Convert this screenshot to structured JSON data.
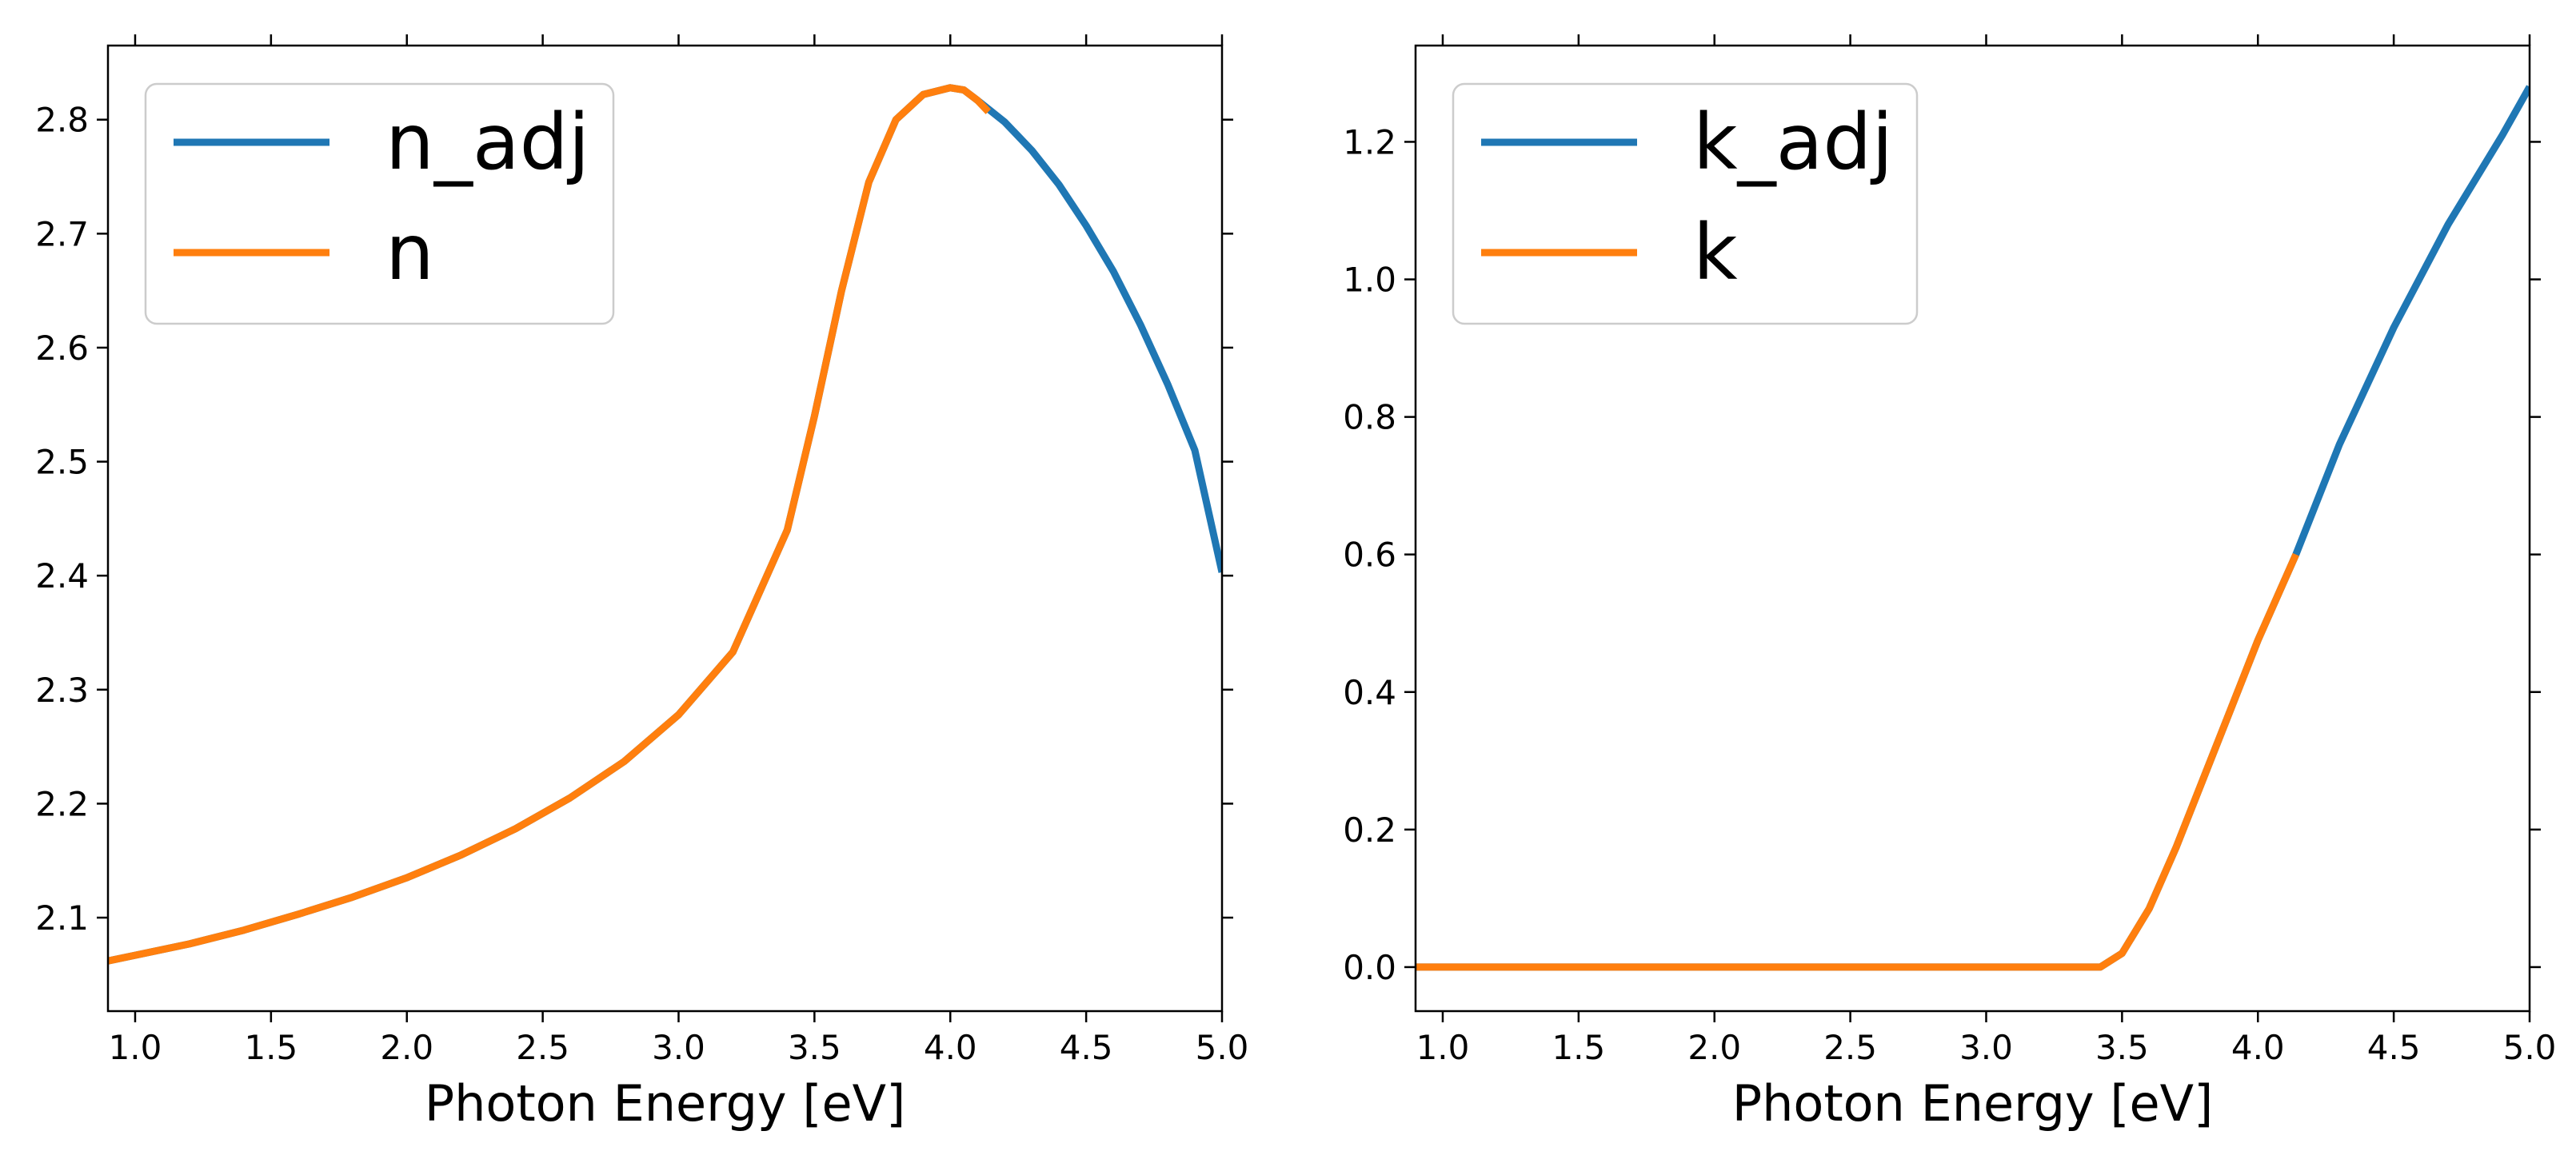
{
  "chart_data": [
    {
      "type": "line",
      "xlabel": "Photon Energy [eV]",
      "ylabel": "",
      "xlim": [
        0.9,
        5.0
      ],
      "ylim": [
        2.018,
        2.865
      ],
      "xticks": [
        "1.0",
        "1.5",
        "2.0",
        "2.5",
        "3.0",
        "3.5",
        "4.0",
        "4.5",
        "5.0"
      ],
      "yticks": [
        "2.1",
        "2.2",
        "2.3",
        "2.4",
        "2.5",
        "2.6",
        "2.7",
        "2.8"
      ],
      "legend": "top-left",
      "grid": false,
      "series": [
        {
          "name": "n_adj",
          "color": "#1f77b4",
          "x": [
            0.9,
            1.0,
            1.2,
            1.4,
            1.6,
            1.8,
            2.0,
            2.2,
            2.4,
            2.6,
            2.8,
            3.0,
            3.2,
            3.4,
            3.5,
            3.6,
            3.7,
            3.8,
            3.9,
            4.0,
            4.05,
            4.1,
            4.2,
            4.3,
            4.4,
            4.5,
            4.6,
            4.7,
            4.8,
            4.9,
            5.0
          ],
          "y": [
            2.062,
            2.067,
            2.077,
            2.089,
            2.103,
            2.118,
            2.135,
            2.155,
            2.178,
            2.205,
            2.237,
            2.278,
            2.333,
            2.44,
            2.54,
            2.65,
            2.745,
            2.8,
            2.822,
            2.828,
            2.826,
            2.817,
            2.798,
            2.773,
            2.743,
            2.707,
            2.667,
            2.62,
            2.568,
            2.51,
            2.403
          ]
        },
        {
          "name": "n",
          "color": "#ff7f0e",
          "x": [
            0.9,
            1.0,
            1.2,
            1.4,
            1.6,
            1.8,
            2.0,
            2.2,
            2.4,
            2.6,
            2.8,
            3.0,
            3.2,
            3.4,
            3.5,
            3.6,
            3.7,
            3.8,
            3.9,
            4.0,
            4.05,
            4.1,
            4.14
          ],
          "y": [
            2.062,
            2.067,
            2.077,
            2.089,
            2.103,
            2.118,
            2.135,
            2.155,
            2.178,
            2.205,
            2.237,
            2.278,
            2.333,
            2.44,
            2.54,
            2.65,
            2.745,
            2.8,
            2.822,
            2.828,
            2.826,
            2.817,
            2.807
          ]
        }
      ]
    },
    {
      "type": "line",
      "xlabel": "Photon Energy [eV]",
      "ylabel": "",
      "xlim": [
        0.9,
        5.0
      ],
      "ylim": [
        -0.064,
        1.34
      ],
      "xticks": [
        "1.0",
        "1.5",
        "2.0",
        "2.5",
        "3.0",
        "3.5",
        "4.0",
        "4.5",
        "5.0"
      ],
      "yticks": [
        "0.0",
        "0.2",
        "0.4",
        "0.6",
        "0.8",
        "1.0",
        "1.2"
      ],
      "legend": "top-left",
      "grid": false,
      "series": [
        {
          "name": "k_adj",
          "color": "#1f77b4",
          "x": [
            0.9,
            1.5,
            2.0,
            2.5,
            3.0,
            3.42,
            3.5,
            3.6,
            3.7,
            3.8,
            3.9,
            4.0,
            4.14,
            4.3,
            4.5,
            4.7,
            4.9,
            5.0
          ],
          "y": [
            0.0,
            0.0,
            0.0,
            0.0,
            0.0,
            0.0,
            0.02,
            0.085,
            0.175,
            0.275,
            0.375,
            0.475,
            0.6,
            0.76,
            0.93,
            1.08,
            1.21,
            1.28
          ]
        },
        {
          "name": "k",
          "color": "#ff7f0e",
          "x": [
            0.9,
            1.5,
            2.0,
            2.5,
            3.0,
            3.42,
            3.5,
            3.6,
            3.7,
            3.8,
            3.9,
            4.0,
            4.14
          ],
          "y": [
            0.0,
            0.0,
            0.0,
            0.0,
            0.0,
            0.0,
            0.02,
            0.085,
            0.175,
            0.275,
            0.375,
            0.475,
            0.6
          ]
        }
      ]
    }
  ]
}
